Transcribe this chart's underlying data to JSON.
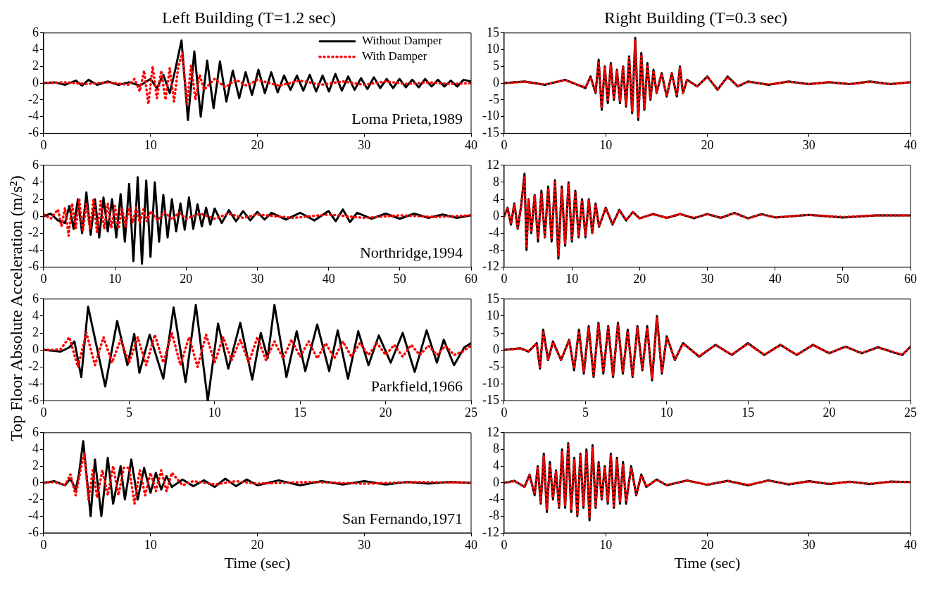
{
  "chart_data": [
    {
      "type": "line",
      "title": "Left Building (T=1.2 sec)",
      "ylabel": "Top Floor Absolute Acceleration (m/s²)",
      "xlim": [
        0,
        40
      ],
      "xticks": [
        0,
        10,
        20,
        30,
        40
      ],
      "ylim": [
        -6,
        6
      ],
      "yticks": [
        -6,
        -4,
        -2,
        0,
        2,
        4,
        6
      ],
      "grid": false,
      "marker": "none",
      "legend": "top right",
      "annotations": [
        "Loma Prieta,1989"
      ],
      "series": [
        {
          "name": "Without Damper",
          "color": "#000000",
          "line_style": "solid",
          "x": [
            0,
            1,
            2,
            3,
            3.6,
            4.2,
            5,
            6,
            7,
            8,
            9,
            10,
            10.6,
            11.2,
            11.8,
            12.3,
            12.9,
            13.5,
            14.1,
            14.7,
            15.3,
            15.9,
            16.5,
            17.1,
            17.7,
            18.3,
            18.9,
            19.5,
            20.1,
            20.7,
            21.3,
            21.9,
            22.5,
            23.1,
            23.7,
            24.3,
            24.9,
            25.5,
            26.1,
            26.7,
            27.3,
            27.9,
            28.5,
            29.1,
            29.7,
            30.3,
            30.9,
            31.5,
            32.1,
            32.7,
            33.3,
            33.9,
            34.5,
            35.1,
            35.7,
            36.3,
            36.9,
            37.5,
            38.1,
            38.7,
            39.3,
            40
          ],
          "values": [
            0,
            0.1,
            -0.2,
            0.3,
            -0.3,
            0.4,
            -0.2,
            0.2,
            -0.2,
            0.1,
            -0.3,
            0.5,
            -0.6,
            1.0,
            -1.2,
            1.5,
            5.1,
            -4.4,
            3.8,
            -4.0,
            2.7,
            -3.0,
            2.6,
            -2.2,
            1.5,
            -1.8,
            1.3,
            -1.4,
            1.6,
            -1.2,
            1.3,
            -1.1,
            0.9,
            -0.8,
            0.9,
            -0.9,
            1.0,
            -1.0,
            0.9,
            -1.0,
            1.1,
            -0.9,
            0.8,
            -0.8,
            0.6,
            -0.7,
            0.7,
            -0.6,
            0.5,
            -0.6,
            0.5,
            -0.5,
            0.4,
            -0.5,
            0.5,
            -0.4,
            0.4,
            -0.4,
            0.3,
            -0.4,
            0.4,
            0.2
          ]
        },
        {
          "name": "With Damper",
          "color": "#ff0000",
          "line_style": "dotted",
          "x": [
            0,
            2,
            4,
            6,
            8,
            8.5,
            9,
            9.4,
            9.8,
            10.2,
            10.6,
            11,
            11.4,
            11.8,
            12.2,
            12.6,
            13,
            13.4,
            13.8,
            14.2,
            14.6,
            15,
            16,
            17,
            18,
            19,
            20,
            22,
            24,
            26,
            28,
            30,
            32,
            34,
            36,
            38,
            40
          ],
          "values": [
            0,
            0.1,
            -0.1,
            0.1,
            -0.2,
            0.5,
            -1.0,
            1.5,
            -2.5,
            2.0,
            -1.8,
            1.5,
            -2.0,
            1.8,
            -2.2,
            2.0,
            3.6,
            -2.5,
            2.2,
            -2.0,
            1.0,
            -0.8,
            0.5,
            -0.5,
            0.4,
            -0.3,
            0.4,
            -0.3,
            0.3,
            -0.2,
            0.2,
            -0.2,
            0.2,
            -0.1,
            0.1,
            -0.1,
            0
          ]
        }
      ]
    },
    {
      "type": "line",
      "title": "Right Building (T=0.3 sec)",
      "xlim": [
        0,
        40
      ],
      "xticks": [
        0,
        10,
        20,
        30,
        40
      ],
      "ylim": [
        -15,
        15
      ],
      "yticks": [
        -15,
        -10,
        -5,
        0,
        5,
        10,
        15
      ],
      "grid": false,
      "marker": "none",
      "x": [
        0,
        2,
        4,
        6,
        8,
        8.5,
        9,
        9.3,
        9.6,
        9.9,
        10.2,
        10.5,
        10.8,
        11.1,
        11.4,
        11.7,
        12,
        12.3,
        12.6,
        12.9,
        13.2,
        13.5,
        13.8,
        14.1,
        14.4,
        14.7,
        15,
        15.5,
        16,
        16.5,
        17,
        17.3,
        17.6,
        18,
        19,
        20,
        21,
        22,
        23,
        24,
        26,
        28,
        30,
        32,
        34,
        36,
        38,
        40
      ],
      "series": [
        {
          "color": "#000000",
          "line_style": "solid",
          "values": [
            0,
            0.5,
            -0.5,
            1,
            -1.5,
            2,
            -3,
            7,
            -8,
            5,
            -6,
            6,
            -5,
            4,
            -6,
            5,
            -7,
            8,
            -9,
            13.5,
            -11,
            9,
            -8,
            6,
            -5,
            4,
            -3,
            3,
            -4,
            3,
            -4,
            5,
            -3,
            1,
            -1,
            2,
            -2,
            2,
            -1,
            0.5,
            -0.5,
            0.5,
            -0.3,
            0.3,
            -0.3,
            0.5,
            -0.3,
            0.3
          ]
        },
        {
          "color": "#ff0000",
          "line_style": "dotted",
          "values": [
            0,
            0.4,
            -0.4,
            0.9,
            -1.3,
            1.8,
            -2.7,
            6.5,
            -7.5,
            4.8,
            -5.5,
            5.5,
            -4.8,
            3.8,
            -5.5,
            4.8,
            -6.5,
            7.5,
            -8.5,
            13,
            -10.5,
            8.5,
            -7.5,
            5.5,
            -4.8,
            3.8,
            -2.8,
            2.8,
            -3.8,
            2.8,
            -3.8,
            4.6,
            -2.8,
            0.9,
            -0.9,
            1.8,
            -1.8,
            1.8,
            -0.9,
            0.4,
            -0.4,
            0.4,
            -0.3,
            0.3,
            -0.3,
            0.4,
            -0.3,
            0.3
          ]
        }
      ]
    },
    {
      "type": "line",
      "xlim": [
        0,
        60
      ],
      "xticks": [
        0,
        10,
        20,
        30,
        40,
        50,
        60
      ],
      "ylim": [
        -6,
        6
      ],
      "yticks": [
        -6,
        -4,
        -2,
        0,
        2,
        4,
        6
      ],
      "grid": false,
      "marker": "none",
      "annotations": [
        "Northridge,1994"
      ],
      "series": [
        {
          "color": "#000000",
          "line_style": "solid",
          "x": [
            0,
            1,
            2,
            3,
            3.6,
            4.2,
            4.8,
            5.4,
            6,
            6.6,
            7.2,
            7.8,
            8.4,
            9,
            9.6,
            10.2,
            10.8,
            11.4,
            12,
            12.6,
            13.2,
            13.8,
            14.4,
            15,
            15.6,
            16.2,
            16.8,
            17.4,
            18,
            18.6,
            19.2,
            19.8,
            20.4,
            21,
            21.6,
            22.2,
            22.8,
            23.4,
            24,
            25,
            26,
            27,
            28,
            29,
            30,
            31,
            32,
            34,
            36,
            38,
            40,
            41,
            42,
            43,
            44,
            46,
            48,
            50,
            52,
            54,
            56,
            58,
            60
          ],
          "values": [
            0,
            0.3,
            -0.5,
            -0.8,
            1.2,
            -1.5,
            2.0,
            -2.0,
            2.8,
            -2.2,
            2.0,
            -2.5,
            2.2,
            -1.8,
            2.0,
            -2.5,
            2.6,
            -3.0,
            3.8,
            -5.3,
            4.6,
            -5.6,
            4.2,
            -4.8,
            4.0,
            -3.0,
            2.5,
            -2.5,
            2.0,
            -1.8,
            1.5,
            -1.6,
            2.2,
            -1.5,
            1.4,
            -1.2,
            1.0,
            -1.0,
            0.9,
            -0.8,
            0.7,
            -0.6,
            0.6,
            -0.5,
            0.5,
            -0.4,
            0.4,
            -0.4,
            0.4,
            -0.5,
            0.6,
            -0.6,
            0.8,
            -0.7,
            0.4,
            -0.3,
            0.3,
            -0.3,
            0.3,
            -0.2,
            0.2,
            -0.2,
            0.1
          ]
        },
        {
          "color": "#ff0000",
          "line_style": "dotted",
          "x": [
            0,
            1,
            2,
            2.5,
            3,
            3.5,
            4,
            4.5,
            5,
            5.5,
            6,
            6.5,
            7,
            7.5,
            8,
            8.5,
            9,
            9.5,
            10,
            10.5,
            11,
            11.5,
            12,
            12.5,
            13,
            13.5,
            14,
            14.5,
            15,
            16,
            17,
            18,
            19,
            20,
            22,
            24,
            26,
            28,
            30,
            35,
            40,
            45,
            50,
            55,
            60
          ],
          "values": [
            0.2,
            -0.3,
            0.8,
            -1.2,
            1.0,
            -2.3,
            1.5,
            -1.5,
            2.0,
            -1.8,
            1.5,
            -1.5,
            2.0,
            -2.0,
            1.8,
            -1.5,
            1.5,
            -1.4,
            1.2,
            -1.5,
            1.0,
            -1.2,
            1.0,
            -0.8,
            1.0,
            -0.8,
            0.8,
            -0.6,
            0.6,
            -0.5,
            0.5,
            -0.4,
            0.4,
            -0.3,
            0.3,
            -0.3,
            0.3,
            -0.2,
            0.2,
            -0.2,
            0.2,
            -0.2,
            0.1,
            -0.1,
            0.1
          ]
        }
      ]
    },
    {
      "type": "line",
      "xlim": [
        0,
        60
      ],
      "xticks": [
        0,
        10,
        20,
        30,
        40,
        50,
        60
      ],
      "ylim": [
        -12,
        12
      ],
      "yticks": [
        -12,
        -8,
        -4,
        0,
        4,
        8,
        12
      ],
      "grid": false,
      "marker": "none",
      "x": [
        0,
        0.5,
        1,
        1.5,
        2,
        2.5,
        3,
        3.3,
        3.6,
        4,
        4.5,
        5,
        5.5,
        6,
        6.5,
        7,
        7.5,
        8,
        8.5,
        9,
        9.5,
        10,
        10.5,
        11,
        11.5,
        12,
        12.5,
        13,
        13.5,
        14,
        15,
        16,
        17,
        18,
        19,
        20,
        22,
        24,
        26,
        28,
        30,
        32,
        34,
        36,
        38,
        40,
        45,
        50,
        55,
        60
      ],
      "series": [
        {
          "color": "#000000",
          "line_style": "solid",
          "values": [
            0,
            2,
            -2,
            3,
            -3,
            2.5,
            10,
            -8,
            4,
            -4,
            5,
            -6,
            6,
            -5,
            7,
            -6,
            8.5,
            -10,
            7,
            -7,
            8,
            -6,
            6,
            -5,
            4,
            -5,
            4,
            -4,
            3,
            -2.5,
            2,
            -2,
            1.5,
            -1,
            1,
            -0.5,
            0.5,
            -0.4,
            0.5,
            -0.5,
            0.5,
            -0.4,
            0.8,
            -0.5,
            0.5,
            -0.3,
            0.3,
            -0.3,
            0.2,
            0.2
          ]
        },
        {
          "color": "#ff0000",
          "line_style": "dotted",
          "values": [
            0,
            1.8,
            -1.8,
            2.8,
            -2.8,
            2.3,
            9.5,
            -7.5,
            3.8,
            -3.8,
            4.8,
            -5.5,
            5.5,
            -4.8,
            6.5,
            -5.5,
            8,
            -9.5,
            6.5,
            -6.5,
            7.5,
            -5.5,
            5.5,
            -4.5,
            3.8,
            -4.5,
            3.8,
            -3.8,
            2.8,
            -2.3,
            1.8,
            -1.8,
            1.4,
            -0.9,
            0.9,
            -0.5,
            0.5,
            -0.4,
            0.5,
            -0.4,
            0.5,
            -0.4,
            0.7,
            -0.5,
            0.4,
            -0.3,
            0.3,
            -0.2,
            0.2,
            0.2
          ]
        }
      ]
    },
    {
      "type": "line",
      "xlim": [
        0,
        25
      ],
      "xticks": [
        0,
        5,
        10,
        15,
        20,
        25
      ],
      "ylim": [
        -6,
        6
      ],
      "yticks": [
        -6,
        -4,
        -2,
        0,
        2,
        4,
        6
      ],
      "grid": false,
      "marker": "none",
      "annotations": [
        "Parkfield,1966"
      ],
      "series": [
        {
          "color": "#000000",
          "line_style": "solid",
          "x": [
            0,
            0.5,
            1,
            1.5,
            1.8,
            2.2,
            2.6,
            3.6,
            4.3,
            4.9,
            5.3,
            5.6,
            6.2,
            7.0,
            7.6,
            8.3,
            8.9,
            9.6,
            10.2,
            10.8,
            11.5,
            12.2,
            12.7,
            13.1,
            13.5,
            14.2,
            14.8,
            15.3,
            16,
            16.7,
            17.2,
            17.8,
            18.4,
            19,
            19.6,
            20.3,
            21,
            21.7,
            22.4,
            23,
            23.4,
            24,
            24.6,
            25
          ],
          "values": [
            0,
            -0.1,
            -0.2,
            0.3,
            1.0,
            -3.2,
            5.1,
            -4.3,
            3.4,
            -1.8,
            1.9,
            -2.7,
            1.8,
            -3.4,
            5.0,
            -3.8,
            5.3,
            -6.0,
            3.1,
            -2.2,
            3.2,
            -3.5,
            2.0,
            -1.0,
            5.3,
            -3.2,
            2.2,
            -2.5,
            3.0,
            -2.5,
            2.3,
            -3.4,
            2.2,
            -1.8,
            1.7,
            -1.5,
            2.0,
            -2.6,
            2.3,
            -1.5,
            1.2,
            -1.8,
            0.3,
            0.8
          ]
        },
        {
          "color": "#ff0000",
          "line_style": "dotted",
          "x": [
            0,
            0.5,
            1,
            1.5,
            2,
            2.5,
            3,
            3.5,
            4,
            4.5,
            5,
            5.5,
            6,
            6.5,
            7,
            7.5,
            8,
            8.5,
            9,
            9.5,
            10,
            10.5,
            11,
            11.5,
            12,
            12.5,
            13,
            13.5,
            14,
            14.5,
            15,
            15.5,
            16,
            16.5,
            17,
            17.5,
            18,
            18.5,
            19,
            19.5,
            20,
            20.5,
            21,
            21.5,
            22,
            22.5,
            23,
            23.5,
            24,
            24.5,
            25
          ],
          "values": [
            0,
            0,
            0.1,
            1.5,
            -2.0,
            2.0,
            -1.8,
            1.5,
            -1.5,
            1.2,
            -1.5,
            1.5,
            -1.8,
            1.8,
            -1.5,
            2.0,
            -1.8,
            1.5,
            -2.0,
            1.8,
            -1.5,
            1.5,
            -1.2,
            1.2,
            -1.5,
            1.5,
            -1.2,
            1.0,
            -1.0,
            1.2,
            -0.8,
            1.0,
            -1.0,
            0.8,
            -1.0,
            1.0,
            -0.8,
            0.8,
            -0.6,
            0.8,
            -0.6,
            0.6,
            -0.8,
            0.6,
            -0.6,
            0.5,
            -0.6,
            0.5,
            -0.6,
            -0.2,
            0.5
          ]
        }
      ]
    },
    {
      "type": "line",
      "xlim": [
        0,
        25
      ],
      "xticks": [
        0,
        5,
        10,
        15,
        20,
        25
      ],
      "ylim": [
        -15,
        15
      ],
      "yticks": [
        -15,
        -10,
        -5,
        0,
        5,
        10,
        15
      ],
      "grid": false,
      "marker": "none",
      "x": [
        0,
        1,
        1.5,
        2,
        2.2,
        2.4,
        2.7,
        3,
        3.5,
        4,
        4.3,
        4.6,
        4.9,
        5.2,
        5.5,
        5.8,
        6.1,
        6.4,
        6.7,
        7,
        7.3,
        7.6,
        7.9,
        8.2,
        8.5,
        8.8,
        9.1,
        9.4,
        9.7,
        10,
        10.5,
        11,
        12,
        13,
        14,
        15,
        16,
        17,
        18,
        19,
        20,
        21,
        22,
        23,
        24,
        24.5,
        25
      ],
      "series": [
        {
          "color": "#000000",
          "line_style": "solid",
          "values": [
            0,
            0.5,
            -0.5,
            2,
            -5.5,
            6,
            -3,
            2.5,
            -3,
            3,
            -6,
            6,
            -7,
            7,
            -8,
            8,
            -7,
            7,
            -8,
            8,
            -7,
            6,
            -8,
            7,
            -6,
            7,
            -9,
            10,
            -7,
            4,
            -3,
            2,
            -2,
            1.5,
            -1.5,
            2,
            -1.5,
            1.5,
            -1.5,
            1.5,
            -1,
            1,
            -1,
            0.8,
            -0.8,
            -1.5,
            1
          ]
        },
        {
          "color": "#ff0000",
          "line_style": "dotted",
          "values": [
            0,
            0.4,
            -0.4,
            1.8,
            -5,
            5.5,
            -2.8,
            2.3,
            -2.8,
            2.8,
            -5.5,
            5.5,
            -6.5,
            6.5,
            -7.5,
            7.5,
            -6.5,
            6.5,
            -7.5,
            7.5,
            -6.5,
            5.5,
            -7.5,
            6.5,
            -5.5,
            6.5,
            -8.5,
            9.5,
            -6.5,
            3.8,
            -2.8,
            1.8,
            -1.8,
            1.4,
            -1.4,
            1.8,
            -1.4,
            1.4,
            -1.4,
            1.4,
            -0.9,
            0.9,
            -0.9,
            0.7,
            -0.7,
            -1.4,
            0.9
          ]
        }
      ]
    },
    {
      "type": "line",
      "xlabel": "Time (sec)",
      "xlim": [
        0,
        40
      ],
      "xticks": [
        0,
        10,
        20,
        30,
        40
      ],
      "ylim": [
        -6,
        6
      ],
      "yticks": [
        -6,
        -4,
        -2,
        0,
        2,
        4,
        6
      ],
      "grid": false,
      "marker": "none",
      "annotations": [
        "San Fernando,1971"
      ],
      "series": [
        {
          "color": "#000000",
          "line_style": "solid",
          "x": [
            0,
            1,
            2,
            2.5,
            3,
            3.3,
            3.7,
            4.4,
            4.8,
            5.4,
            6.0,
            6.5,
            7.2,
            7.6,
            8.2,
            8.8,
            9.4,
            10,
            10.5,
            11,
            11.5,
            12,
            13,
            14,
            15,
            16,
            17,
            18,
            19,
            20,
            22,
            24,
            26,
            28,
            30,
            32,
            34,
            36,
            38,
            40
          ],
          "values": [
            0,
            0.2,
            -0.3,
            0.5,
            -0.8,
            1.0,
            5.0,
            -4.0,
            2.8,
            -4.0,
            3.0,
            -2.5,
            2.0,
            -2.0,
            2.8,
            -2.0,
            1.8,
            -1.2,
            1.2,
            -0.8,
            0.8,
            -0.5,
            0.4,
            -0.4,
            0.3,
            -0.5,
            0.5,
            -0.4,
            0.4,
            -0.3,
            0.3,
            -0.3,
            0.2,
            -0.2,
            0.2,
            -0.2,
            0.1,
            -0.1,
            0.1,
            0
          ]
        },
        {
          "color": "#ff0000",
          "line_style": "dotted",
          "x": [
            0,
            1,
            2,
            2.5,
            3,
            3.5,
            3.8,
            4.2,
            4.6,
            5,
            5.5,
            6,
            6.5,
            7,
            7.5,
            8,
            8.5,
            9,
            9.5,
            10,
            10.5,
            11,
            11.5,
            12,
            13,
            14,
            16,
            18,
            20,
            25,
            30,
            35,
            40
          ],
          "values": [
            0,
            0.1,
            -0.3,
            1.0,
            -1.5,
            1.8,
            3.5,
            -2.0,
            1.5,
            -1.8,
            1.5,
            -1.5,
            2.0,
            -1.5,
            1.8,
            1.8,
            -2.5,
            1.5,
            -1.5,
            1.2,
            -1.0,
            1.5,
            -1.0,
            1.2,
            -0.3,
            0.2,
            -0.2,
            0.2,
            -0.1,
            0.1,
            -0.1,
            0.1,
            0
          ]
        }
      ]
    },
    {
      "type": "line",
      "xlabel": "Time (sec)",
      "xlim": [
        0,
        40
      ],
      "xticks": [
        0,
        10,
        20,
        30,
        40
      ],
      "ylim": [
        -12,
        12
      ],
      "yticks": [
        -12,
        -8,
        -4,
        0,
        4,
        8,
        12
      ],
      "grid": false,
      "marker": "none",
      "x": [
        0,
        1,
        2,
        2.5,
        3,
        3.3,
        3.6,
        3.9,
        4.2,
        4.5,
        4.8,
        5.1,
        5.4,
        5.7,
        6,
        6.3,
        6.6,
        6.9,
        7.2,
        7.5,
        7.8,
        8.1,
        8.4,
        8.7,
        9,
        9.3,
        9.6,
        9.9,
        10.2,
        10.5,
        10.8,
        11.1,
        11.4,
        11.7,
        12,
        12.5,
        13,
        13.5,
        14,
        15,
        16,
        18,
        20,
        22,
        24,
        26,
        28,
        30,
        32,
        34,
        36,
        38,
        40
      ],
      "series": [
        {
          "color": "#000000",
          "line_style": "solid",
          "values": [
            0,
            0.5,
            -1,
            2,
            -3,
            4,
            -5,
            7,
            -7,
            5,
            -4,
            3,
            -6,
            8,
            -6,
            9.5,
            -7,
            6,
            -8,
            7,
            -6,
            8,
            -9,
            9,
            -6,
            5,
            -4,
            4,
            -5,
            7,
            -6,
            6,
            -5,
            5,
            -5,
            4,
            -3,
            2,
            -1,
            0.8,
            -0.6,
            0.6,
            -0.5,
            0.5,
            -0.6,
            0.6,
            -0.4,
            0.4,
            -0.3,
            0.3,
            -0.3,
            0.3,
            0.2
          ]
        },
        {
          "color": "#ff0000",
          "line_style": "dotted",
          "values": [
            0,
            0.4,
            -0.9,
            1.8,
            -2.7,
            3.6,
            -4.5,
            6.5,
            -6.5,
            4.5,
            -3.6,
            2.7,
            -5.5,
            7.5,
            -5.5,
            9,
            -6.5,
            5.5,
            -7.5,
            6.5,
            -5.5,
            7.5,
            -8.5,
            8.5,
            -5.5,
            4.5,
            -3.6,
            3.6,
            -4.5,
            6.5,
            -5.5,
            5.5,
            -4.5,
            4.5,
            -4.5,
            3.6,
            -2.7,
            1.8,
            -0.9,
            0.7,
            -0.5,
            0.5,
            -0.4,
            0.4,
            -0.5,
            0.5,
            -0.3,
            0.3,
            -0.2,
            0.2,
            -0.2,
            0.2,
            0.2
          ]
        }
      ]
    }
  ]
}
